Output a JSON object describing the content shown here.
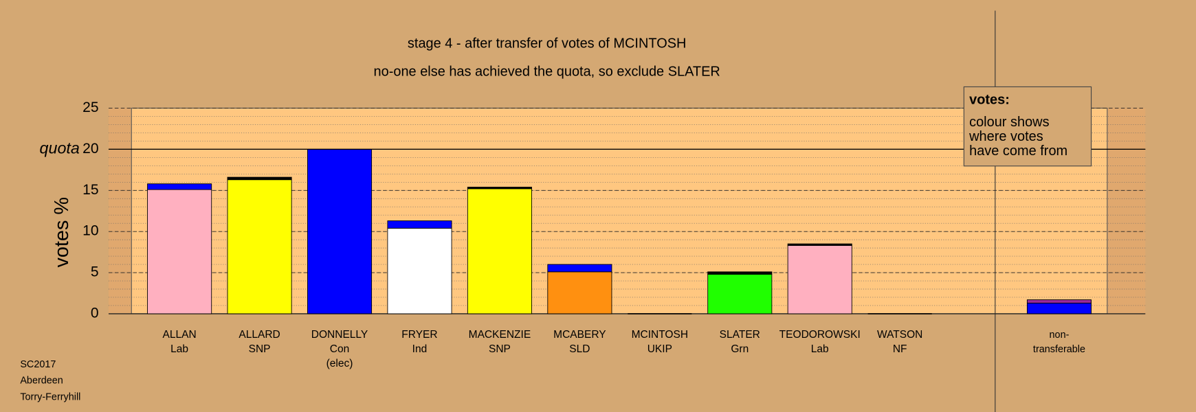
{
  "chart_data": {
    "type": "bar",
    "title": "stage 4 - after transfer of votes of MCINTOSH",
    "subtitle": "no-one else has achieved the quota, so exclude SLATER",
    "y_label": "votes %",
    "categories": [
      [
        "ALLAN",
        "Lab"
      ],
      [
        "ALLARD",
        "SNP"
      ],
      [
        "DONNELLY",
        "Con",
        "(elec)"
      ],
      [
        "FRYER",
        "Ind"
      ],
      [
        "MACKENZIE",
        "SNP"
      ],
      [
        "MCABERY",
        "SLD"
      ],
      [
        "MCINTOSH",
        "UKIP"
      ],
      [
        "SLATER",
        "Grn"
      ],
      [
        "TEODOROWSKI",
        "Lab"
      ],
      [
        "WATSON",
        "NF"
      ],
      [
        "non-",
        "transferable"
      ]
    ],
    "series": [
      {
        "colors": [
          "#ffb0c0",
          "#ffff00",
          "#0000ff",
          "#ffffff",
          "#ffff00",
          "#ff9010",
          null,
          "#20ff00",
          "#ffb0c0",
          null,
          null
        ],
        "values": [
          15.1,
          16.3,
          20.0,
          10.4,
          15.2,
          5.1,
          0,
          4.8,
          8.3,
          0,
          0
        ]
      },
      {
        "color": "#0000ff",
        "values": [
          0.7,
          0,
          0,
          0.9,
          0,
          0.9,
          0,
          0,
          0,
          0,
          1.3
        ]
      },
      {
        "color": "#9a2a9a",
        "values": [
          0,
          0,
          0,
          0,
          0,
          0,
          0,
          0,
          0,
          0,
          0.4
        ]
      },
      {
        "color": "#000000",
        "values": [
          0,
          0.3,
          0,
          0,
          0.2,
          0,
          0,
          0.3,
          0.2,
          0,
          0
        ]
      }
    ],
    "ylim": [
      0,
      25
    ],
    "yticks": [
      0,
      5,
      10,
      15,
      20,
      25
    ],
    "minor_step": 1,
    "quota": 20,
    "quota_label": "quota",
    "annotation": {
      "heading": "votes:",
      "lines": [
        "colour shows",
        "where votes",
        "have come from"
      ]
    },
    "footnote": [
      "SC2017",
      "Aberdeen",
      "Torry-Ferryhill"
    ]
  }
}
